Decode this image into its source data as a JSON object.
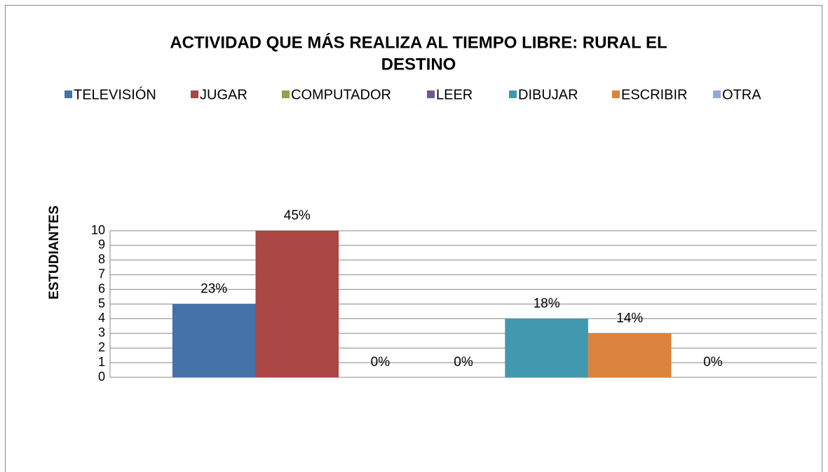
{
  "chart_data": {
    "type": "bar",
    "title": "ACTIVIDAD QUE MÁS REALIZA AL TIEMPO LIBRE: RURAL EL DESTINO",
    "y_label": "ESTUDIANTES",
    "categories": [
      null
    ],
    "series": [
      {
        "name": "TELEVISIÓN",
        "color": "#4572a7",
        "values": [
          5
        ],
        "percent_labels": [
          "23%"
        ]
      },
      {
        "name": "JUGAR",
        "color": "#aa4643",
        "values": [
          10
        ],
        "percent_labels": [
          "45%"
        ]
      },
      {
        "name": "COMPUTADOR",
        "color": "#89a54e",
        "values": [
          0
        ],
        "percent_labels": [
          "0%"
        ]
      },
      {
        "name": "LEER",
        "color": "#71588f",
        "values": [
          0
        ],
        "percent_labels": [
          "0%"
        ]
      },
      {
        "name": "DIBUJAR",
        "color": "#4198af",
        "values": [
          4
        ],
        "percent_labels": [
          "18%"
        ]
      },
      {
        "name": "ESCRIBIR",
        "color": "#db843d",
        "values": [
          3
        ],
        "percent_labels": [
          "14%"
        ]
      },
      {
        "name": "OTRA",
        "color": "#93a9cf",
        "values": [
          0
        ],
        "percent_labels": [
          "0%"
        ]
      }
    ],
    "ylim": [
      0,
      10
    ],
    "yticks": [
      0,
      1,
      2,
      3,
      4,
      5,
      6,
      7,
      8,
      9,
      10
    ],
    "grid": true,
    "legend": "top"
  }
}
